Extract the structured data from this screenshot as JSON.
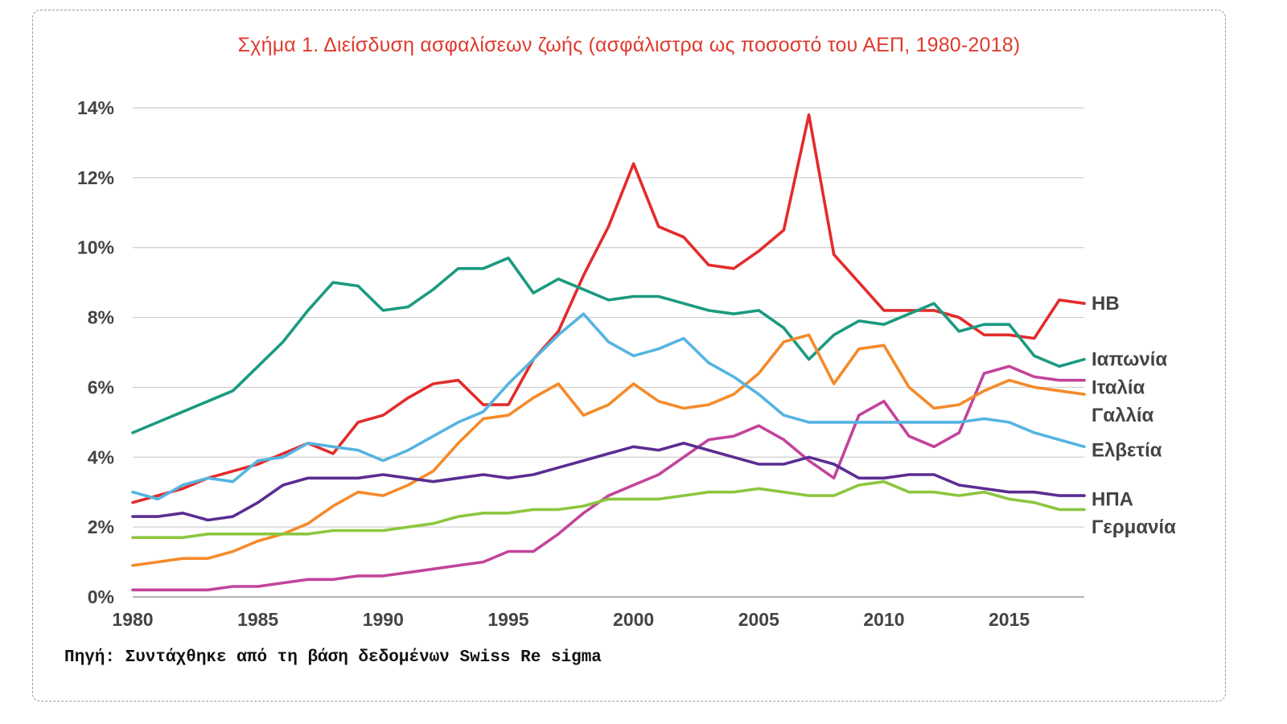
{
  "chart_data": {
    "type": "line",
    "title": "Σχήμα 1. Διείσδυση ασφαλίσεων ζωής (ασφάλιστρα ως ποσοστό του ΑΕΠ, 1980-2018)",
    "source": "Πηγή: Συντάχθηκε από τη βάση δεδομένων Swiss Re sigma",
    "x": [
      1980,
      1981,
      1982,
      1983,
      1984,
      1985,
      1986,
      1987,
      1988,
      1989,
      1990,
      1991,
      1992,
      1993,
      1994,
      1995,
      1996,
      1997,
      1998,
      1999,
      2000,
      2001,
      2002,
      2003,
      2004,
      2005,
      2006,
      2007,
      2008,
      2009,
      2010,
      2011,
      2012,
      2013,
      2014,
      2015,
      2016,
      2017,
      2018
    ],
    "xlim": [
      1980,
      2018
    ],
    "ylim": [
      0,
      14
    ],
    "x_ticks": [
      {
        "value": 1980,
        "label": "1980"
      },
      {
        "value": 1985,
        "label": "1985"
      },
      {
        "value": 1990,
        "label": "1990"
      },
      {
        "value": 1995,
        "label": "1995"
      },
      {
        "value": 2000,
        "label": "2000"
      },
      {
        "value": 2005,
        "label": "2005"
      },
      {
        "value": 2010,
        "label": "2010"
      },
      {
        "value": 2015,
        "label": "2015"
      }
    ],
    "y_ticks": [
      {
        "value": 0,
        "label": "0%"
      },
      {
        "value": 2,
        "label": "2%"
      },
      {
        "value": 4,
        "label": "4%"
      },
      {
        "value": 6,
        "label": "6%"
      },
      {
        "value": 8,
        "label": "8%"
      },
      {
        "value": 10,
        "label": "10%"
      },
      {
        "value": 12,
        "label": "12%"
      },
      {
        "value": 14,
        "label": "14%"
      }
    ],
    "grid": true,
    "legend": "end-of-line labels at right",
    "series": [
      {
        "name": "ΗΒ",
        "color": "#e32b2b",
        "label_y": 8.4,
        "values": [
          2.7,
          2.9,
          3.1,
          3.4,
          3.6,
          3.8,
          4.1,
          4.4,
          4.1,
          5.0,
          5.2,
          5.7,
          6.1,
          6.2,
          5.5,
          5.5,
          6.8,
          7.6,
          9.2,
          10.6,
          12.4,
          10.6,
          10.3,
          9.5,
          9.4,
          9.9,
          10.5,
          13.8,
          9.8,
          9.0,
          8.2,
          8.2,
          8.2,
          8.0,
          7.5,
          7.5,
          7.4,
          8.5,
          8.4
        ]
      },
      {
        "name": "Ιαπωνία",
        "color": "#1b9a80",
        "label_y": 6.8,
        "values": [
          4.7,
          5.0,
          5.3,
          5.6,
          5.9,
          6.6,
          7.3,
          8.2,
          9.0,
          8.9,
          8.2,
          8.3,
          8.8,
          9.4,
          9.4,
          9.7,
          8.7,
          9.1,
          8.8,
          8.5,
          8.6,
          8.6,
          8.4,
          8.2,
          8.1,
          8.2,
          7.7,
          6.8,
          7.5,
          7.9,
          7.8,
          8.1,
          8.4,
          7.6,
          7.8,
          7.8,
          6.9,
          6.6,
          6.8
        ]
      },
      {
        "name": "Ιταλία",
        "color": "#c2449b",
        "label_y": 6.0,
        "values": [
          0.2,
          0.2,
          0.2,
          0.2,
          0.3,
          0.3,
          0.4,
          0.5,
          0.5,
          0.6,
          0.6,
          0.7,
          0.8,
          0.9,
          1.0,
          1.3,
          1.3,
          1.8,
          2.4,
          2.9,
          3.2,
          3.5,
          4.0,
          4.5,
          4.6,
          4.9,
          4.5,
          3.9,
          3.4,
          5.2,
          5.6,
          4.6,
          4.3,
          4.7,
          6.4,
          6.6,
          6.3,
          6.2,
          6.2
        ]
      },
      {
        "name": "Γαλλία",
        "color": "#f58a2a",
        "label_y": 5.2,
        "values": [
          0.9,
          1.0,
          1.1,
          1.1,
          1.3,
          1.6,
          1.8,
          2.1,
          2.6,
          3.0,
          2.9,
          3.2,
          3.6,
          4.4,
          5.1,
          5.2,
          5.7,
          6.1,
          5.2,
          5.5,
          6.1,
          5.6,
          5.4,
          5.5,
          5.8,
          6.4,
          7.3,
          7.5,
          6.1,
          7.1,
          7.2,
          6.0,
          5.4,
          5.5,
          5.9,
          6.2,
          6.0,
          5.9,
          5.8
        ]
      },
      {
        "name": "Ελβετία",
        "color": "#55b4e1",
        "label_y": 4.2,
        "values": [
          3.0,
          2.8,
          3.2,
          3.4,
          3.3,
          3.9,
          4.0,
          4.4,
          4.3,
          4.2,
          3.9,
          4.2,
          4.6,
          5.0,
          5.3,
          6.1,
          6.8,
          7.5,
          8.1,
          7.3,
          6.9,
          7.1,
          7.4,
          6.7,
          6.3,
          5.8,
          5.2,
          5.0,
          5.0,
          5.0,
          5.0,
          5.0,
          5.0,
          5.0,
          5.1,
          5.0,
          4.7,
          4.5,
          4.3
        ]
      },
      {
        "name": "ΗΠΑ",
        "color": "#5b2d91",
        "label_y": 2.8,
        "values": [
          2.3,
          2.3,
          2.4,
          2.2,
          2.3,
          2.7,
          3.2,
          3.4,
          3.4,
          3.4,
          3.5,
          3.4,
          3.3,
          3.4,
          3.5,
          3.4,
          3.5,
          3.7,
          3.9,
          4.1,
          4.3,
          4.2,
          4.4,
          4.2,
          4.0,
          3.8,
          3.8,
          4.0,
          3.8,
          3.4,
          3.4,
          3.5,
          3.5,
          3.2,
          3.1,
          3.0,
          3.0,
          2.9,
          2.9
        ]
      },
      {
        "name": "Γερμανία",
        "color": "#8cc63f",
        "label_y": 2.0,
        "values": [
          1.7,
          1.7,
          1.7,
          1.8,
          1.8,
          1.8,
          1.8,
          1.8,
          1.9,
          1.9,
          1.9,
          2.0,
          2.1,
          2.3,
          2.4,
          2.4,
          2.5,
          2.5,
          2.6,
          2.8,
          2.8,
          2.8,
          2.9,
          3.0,
          3.0,
          3.1,
          3.0,
          2.9,
          2.9,
          3.2,
          3.3,
          3.0,
          3.0,
          2.9,
          3.0,
          2.8,
          2.7,
          2.5,
          2.5
        ]
      }
    ]
  }
}
